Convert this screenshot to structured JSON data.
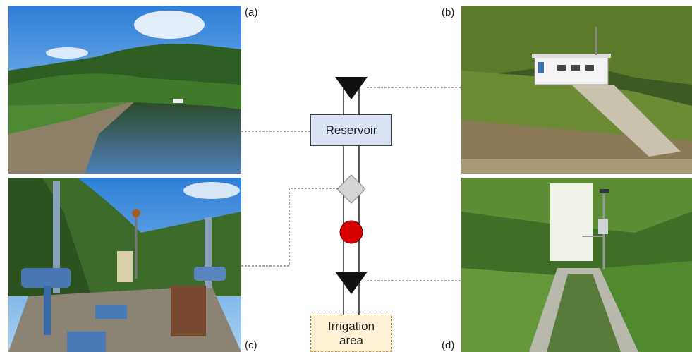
{
  "panels": [
    {
      "label": "(a)"
    },
    {
      "label": "(b)"
    },
    {
      "label": "(c)"
    },
    {
      "label": "(d)"
    }
  ],
  "nodes": [
    {
      "label": "Reservoir"
    },
    {
      "label": "Irrigation area"
    }
  ]
}
